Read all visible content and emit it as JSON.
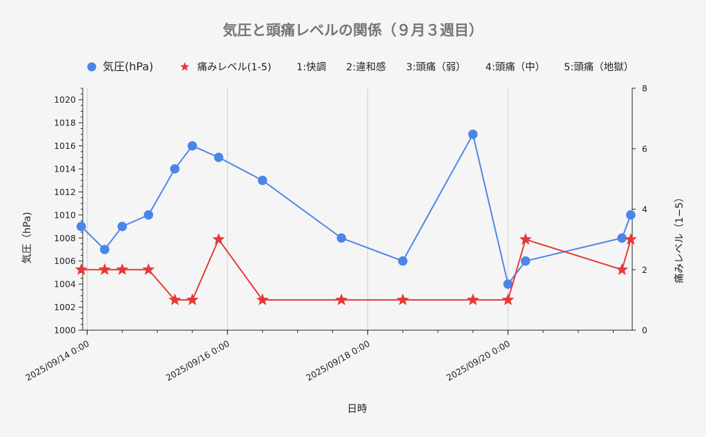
{
  "chart_data": {
    "type": "line",
    "title": "気圧と頭痛レベルの関係（９月３週目）",
    "xlabel": "日時",
    "ylabel_left": "気圧（hPa)",
    "ylabel_right": "痛みレベル（1−5）",
    "x_ticks": [
      "2025/09/14 0:00",
      "2025/09/16 0:00",
      "2025/09/18 0:00",
      "2025/09/20 0:00"
    ],
    "y_left_ticks": [
      "1000",
      "1002",
      "1004",
      "1006",
      "1008",
      "1010",
      "1012",
      "1014",
      "1016",
      "1018",
      "1020"
    ],
    "y_right_ticks": [
      "0",
      "2",
      "4",
      "6",
      "8"
    ],
    "y_left_range": [
      1000,
      1021
    ],
    "y_right_range": [
      0,
      8
    ],
    "x_range": [
      "2025-09-13T22:30",
      "2025-09-21T18:30"
    ],
    "grid": "vertical",
    "legend_position": "top",
    "legend": {
      "pressure_label": "気圧(hPa)",
      "pain_label": "痛みレベル(1-5)",
      "scale_items": [
        "1:快調",
        "2:違和感",
        "3:頭痛（弱）",
        "4:頭痛（中）",
        "5:頭痛（地獄）"
      ]
    },
    "series": [
      {
        "name": "気圧(hPa)",
        "axis": "left",
        "color": "#4a86e8",
        "marker": "circle",
        "points": [
          {
            "x": "2025-09-13T22:00",
            "y": 1009
          },
          {
            "x": "2025-09-14T06:00",
            "y": 1007
          },
          {
            "x": "2025-09-14T12:00",
            "y": 1009
          },
          {
            "x": "2025-09-14T21:00",
            "y": 1010
          },
          {
            "x": "2025-09-15T06:00",
            "y": 1014
          },
          {
            "x": "2025-09-15T12:00",
            "y": 1016
          },
          {
            "x": "2025-09-15T21:00",
            "y": 1015
          },
          {
            "x": "2025-09-16T12:00",
            "y": 1013
          },
          {
            "x": "2025-09-17T15:00",
            "y": 1008
          },
          {
            "x": "2025-09-18T12:00",
            "y": 1006
          },
          {
            "x": "2025-09-19T12:00",
            "y": 1017
          },
          {
            "x": "2025-09-20T00:00",
            "y": 1004
          },
          {
            "x": "2025-09-20T06:00",
            "y": 1006
          },
          {
            "x": "2025-09-21T15:00",
            "y": 1008
          },
          {
            "x": "2025-09-21T18:00",
            "y": 1010
          }
        ]
      },
      {
        "name": "痛みレベル(1-5)",
        "axis": "right",
        "color": "#e53935",
        "marker": "star",
        "points": [
          {
            "x": "2025-09-13T22:00",
            "y": 2
          },
          {
            "x": "2025-09-14T06:00",
            "y": 2
          },
          {
            "x": "2025-09-14T12:00",
            "y": 2
          },
          {
            "x": "2025-09-14T21:00",
            "y": 2
          },
          {
            "x": "2025-09-15T06:00",
            "y": 1
          },
          {
            "x": "2025-09-15T12:00",
            "y": 1
          },
          {
            "x": "2025-09-15T21:00",
            "y": 3
          },
          {
            "x": "2025-09-16T12:00",
            "y": 1
          },
          {
            "x": "2025-09-17T15:00",
            "y": 1
          },
          {
            "x": "2025-09-18T12:00",
            "y": 1
          },
          {
            "x": "2025-09-19T12:00",
            "y": 1
          },
          {
            "x": "2025-09-20T00:00",
            "y": 1
          },
          {
            "x": "2025-09-20T06:00",
            "y": 3
          },
          {
            "x": "2025-09-21T15:00",
            "y": 2
          },
          {
            "x": "2025-09-21T18:00",
            "y": 3
          }
        ]
      }
    ]
  }
}
